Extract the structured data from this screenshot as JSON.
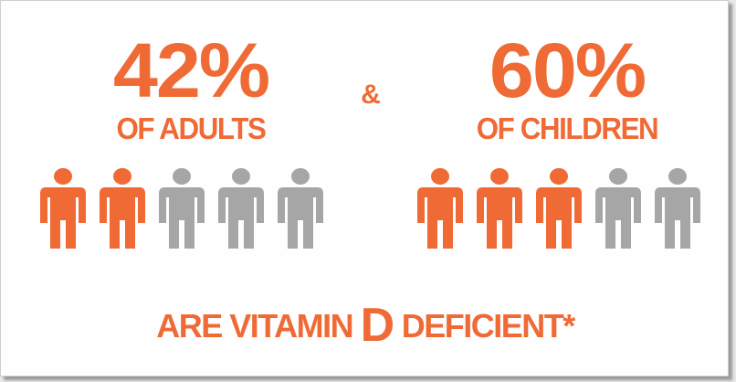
{
  "colors": {
    "accent": "#ef6a35",
    "inactive": "#a6a6a6"
  },
  "adults": {
    "percent": "42%",
    "label": "OF ADULTS",
    "highlighted_count": 2,
    "total_count": 5
  },
  "connector": "&",
  "children": {
    "percent": "60%",
    "label": "OF CHILDREN",
    "highlighted_count": 3,
    "total_count": 5
  },
  "footer": {
    "before": "ARE VITAMIN ",
    "emphasis": "D",
    "after": " DEFICIENT*"
  },
  "icon_name": "person-icon"
}
